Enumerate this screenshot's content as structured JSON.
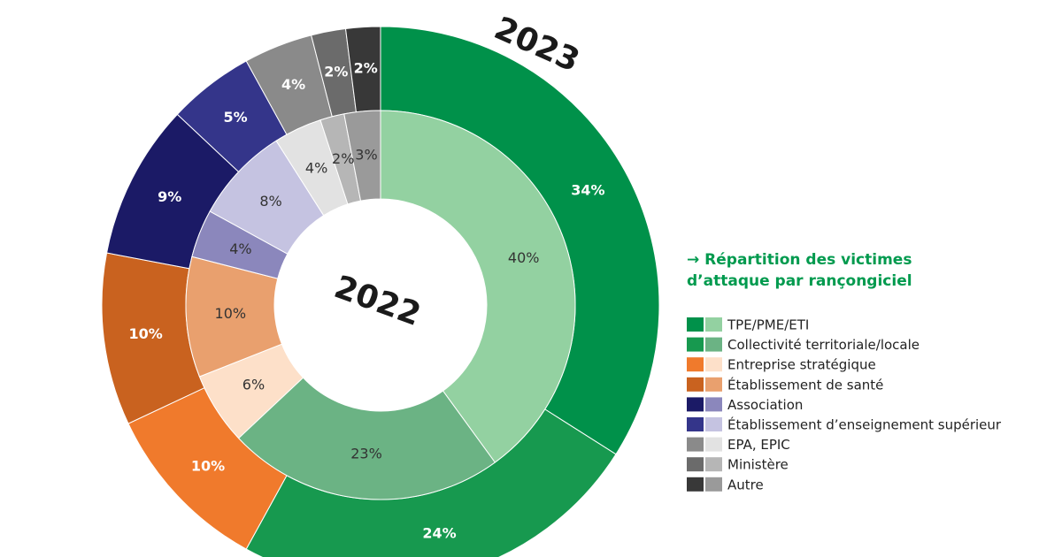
{
  "chart_data": {
    "type": "donut",
    "title_lines": [
      "→ Répartition des victimes",
      "d’attaque par rançongiciel"
    ],
    "categories": [
      "TPE/PME/ETI",
      "Collectivité territoriale/locale",
      "Entreprise stratégique",
      "Établissement de santé",
      "Association",
      "Établissement d’enseignement supérieur",
      "EPA, EPIC",
      "Ministère",
      "Autre"
    ],
    "series": [
      {
        "name": "2023",
        "colors": [
          "#00914a",
          "#17994f",
          "#f07a2c",
          "#c9621f",
          "#1b1a66",
          "#34358a",
          "#8a8a8a",
          "#6b6b6b",
          "#383838"
        ],
        "values": [
          34,
          24,
          10,
          10,
          9,
          5,
          4,
          2,
          2
        ],
        "value_labels": [
          "34%",
          "24%",
          "10%",
          "10%",
          "9%",
          "5%",
          "4%",
          "2%",
          "2%"
        ]
      },
      {
        "name": "2022",
        "colors": [
          "#93d1a1",
          "#6bb384",
          "#fde0c9",
          "#e9a06e",
          "#8b87bc",
          "#c5c3e1",
          "#e2e2e2",
          "#b6b6b6",
          "#9a9a9a"
        ],
        "values": [
          40,
          23,
          6,
          10,
          4,
          8,
          4,
          2,
          3
        ],
        "value_labels": [
          "40%",
          "23%",
          "6%",
          "10%",
          "4%",
          "8%",
          "4%",
          "2%",
          "3%"
        ]
      }
    ]
  }
}
